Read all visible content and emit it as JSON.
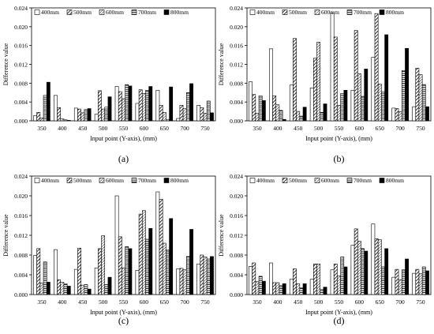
{
  "legend": [
    "400mm",
    "500mm",
    "600mm",
    "700mm",
    "800mm"
  ],
  "fills": [
    "white",
    "diag",
    "dense",
    "horiz",
    "black"
  ],
  "chart_data": [
    {
      "type": "bar",
      "panel": "(a)",
      "xlabel": "Input point (Y-axis), (mm)",
      "ylabel": "Difference value",
      "categories": [
        "350",
        "400",
        "450",
        "500",
        "550",
        "600",
        "650",
        "700",
        "750"
      ],
      "yticks": [
        "0.000",
        "0.004",
        "0.008",
        "0.012",
        "0.016",
        "0.020",
        "0.024"
      ],
      "ylim": [
        0,
        0.024
      ],
      "legend_position": "top-left",
      "series": [
        {
          "name": "400mm",
          "values": [
            0.0011,
            0.0054,
            0.0027,
            0.0014,
            0.0073,
            0.0037,
            0.0065,
            0.0005,
            0.0033
          ]
        },
        {
          "name": "500mm",
          "values": [
            0.0018,
            0.0028,
            0.0025,
            0.0064,
            0.0062,
            0.0066,
            0.0033,
            0.0033,
            0.0028
          ]
        },
        {
          "name": "600mm",
          "values": [
            0.0006,
            0.0004,
            0.0017,
            0.0025,
            0.0047,
            0.0058,
            0.0018,
            0.0026,
            0.0016
          ]
        },
        {
          "name": "700mm",
          "values": [
            0.0054,
            0.0002,
            0.0024,
            0.0029,
            0.0077,
            0.0065,
            0.0003,
            0.006,
            0.0042
          ]
        },
        {
          "name": "800mm",
          "values": [
            0.0082,
            0.0001,
            0.0026,
            0.0051,
            0.0074,
            0.0073,
            0.0072,
            0.0079,
            0.0017
          ]
        }
      ]
    },
    {
      "type": "bar",
      "panel": "(b)",
      "xlabel": "Input point (Y-axis), (mm)",
      "ylabel": "Difference value",
      "categories": [
        "350",
        "400",
        "450",
        "500",
        "550",
        "600",
        "650",
        "700",
        "750"
      ],
      "yticks": [
        "0.000",
        "0.004",
        "0.008",
        "0.012",
        "0.016",
        "0.020",
        "0.024"
      ],
      "ylim": [
        0,
        0.024
      ],
      "legend_position": "top-left",
      "series": [
        {
          "name": "400mm",
          "values": [
            0.0083,
            0.0153,
            0.0076,
            0.007,
            0.0229,
            0.0065,
            0.0135,
            0.0027,
            0.003
          ]
        },
        {
          "name": "500mm",
          "values": [
            0.0056,
            0.0053,
            0.0175,
            0.0133,
            0.0178,
            0.0192,
            0.0228,
            0.0026,
            0.0112
          ]
        },
        {
          "name": "600mm",
          "values": [
            0.0016,
            0.0034,
            0.002,
            0.0167,
            0.0033,
            0.01,
            0.0078,
            0.0019,
            0.0098
          ]
        },
        {
          "name": "700mm",
          "values": [
            0.0053,
            0.0022,
            0.001,
            0.0018,
            0.0058,
            0.0052,
            0.0062,
            0.0107,
            0.0077
          ]
        },
        {
          "name": "800mm",
          "values": [
            0.0043,
            0.0003,
            0.0029,
            0.0036,
            0.0065,
            0.011,
            0.0183,
            0.0154,
            0.003
          ]
        }
      ]
    },
    {
      "type": "bar",
      "panel": "(c)",
      "xlabel": "Input point (Y-axis), (mm)",
      "ylabel": "Difference value",
      "categories": [
        "350",
        "400",
        "450",
        "500",
        "550",
        "600",
        "650",
        "700",
        "750"
      ],
      "yticks": [
        "0.000",
        "0.004",
        "0.008",
        "0.012",
        "0.016",
        "0.020",
        "0.024"
      ],
      "ylim": [
        0,
        0.024
      ],
      "legend_position": "top-left",
      "series": [
        {
          "name": "400mm",
          "values": [
            0.0079,
            0.0091,
            0.0051,
            0.0054,
            0.02,
            0.0049,
            0.0208,
            0.0052,
            0.0062
          ]
        },
        {
          "name": "500mm",
          "values": [
            0.0093,
            0.003,
            0.0094,
            0.0093,
            0.0117,
            0.0163,
            0.0193,
            0.0053,
            0.008
          ]
        },
        {
          "name": "600mm",
          "values": [
            0.0023,
            0.0025,
            0.0019,
            0.0119,
            0.0054,
            0.017,
            0.0104,
            0.005,
            0.0076
          ]
        },
        {
          "name": "700mm",
          "values": [
            0.0066,
            0.0022,
            0.002,
            0.002,
            0.0097,
            0.0112,
            0.009,
            0.0077,
            0.0072
          ]
        },
        {
          "name": "800mm",
          "values": [
            0.0025,
            0.0017,
            0.0011,
            0.0035,
            0.0093,
            0.0134,
            0.0154,
            0.0132,
            0.0077
          ]
        }
      ]
    },
    {
      "type": "bar",
      "panel": "(d)",
      "xlabel": "Input point (Y-axis), (mm)",
      "ylabel": "Difference value",
      "categories": [
        "350",
        "400",
        "450",
        "500",
        "550",
        "600",
        "650",
        "700",
        "750"
      ],
      "yticks": [
        "0.000",
        "0.004",
        "0.008",
        "0.012",
        "0.016",
        "0.020",
        "0.024"
      ],
      "ylim": [
        0,
        0.024
      ],
      "legend_position": "top-left",
      "series": [
        {
          "name": "400mm",
          "values": [
            0.0057,
            0.0064,
            0.0031,
            0.0031,
            0.005,
            0.01,
            0.0143,
            0.0035,
            0.0043
          ]
        },
        {
          "name": "500mm",
          "values": [
            0.0064,
            0.0024,
            0.0052,
            0.0062,
            0.0062,
            0.0133,
            0.0113,
            0.0051,
            0.0051
          ]
        },
        {
          "name": "600mm",
          "values": [
            0.0026,
            0.0024,
            0.0022,
            0.0062,
            0.0038,
            0.0108,
            0.0111,
            0.003,
            0.0042
          ]
        },
        {
          "name": "700mm",
          "values": [
            0.0037,
            0.0018,
            0.0014,
            0.001,
            0.0076,
            0.0093,
            0.0056,
            0.005,
            0.0056
          ]
        },
        {
          "name": "800mm",
          "values": [
            0.0027,
            0.0022,
            0.0022,
            0.0015,
            0.0056,
            0.0088,
            0.0093,
            0.0072,
            0.0048
          ]
        }
      ]
    }
  ]
}
